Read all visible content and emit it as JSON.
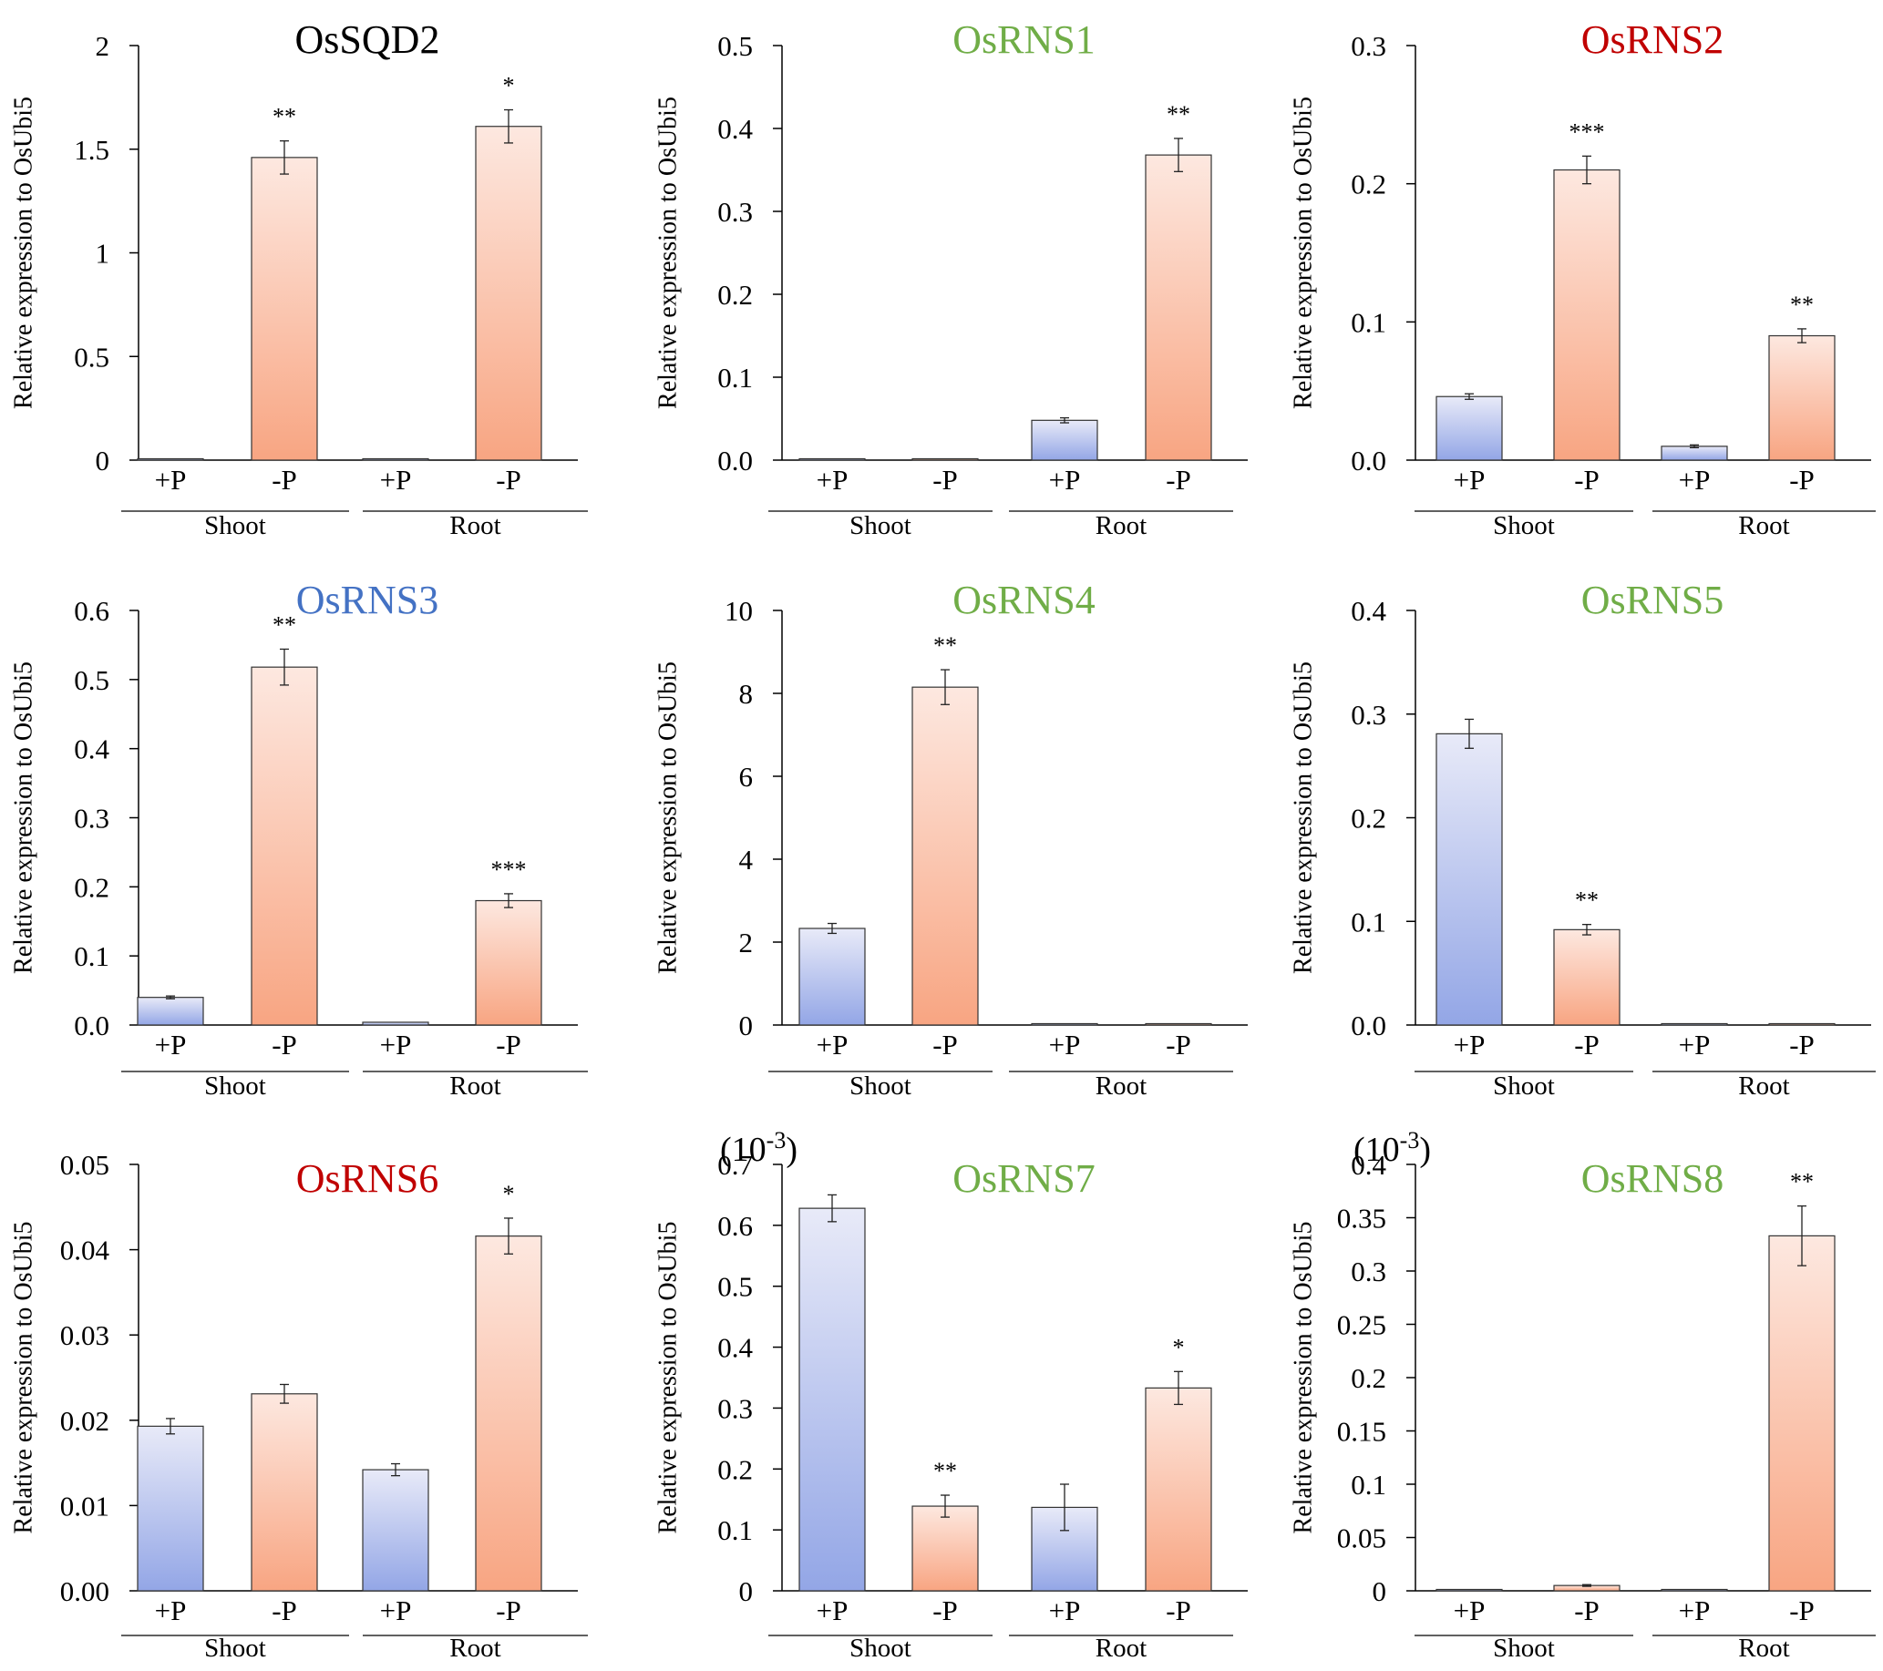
{
  "y_axis_label": "Relative expression to OsUbi5",
  "categories": [
    "+P",
    "-P",
    "+P",
    "-P"
  ],
  "groups": [
    "Shoot",
    "Root"
  ],
  "colors": {
    "plusP_top": "#e8eaf8",
    "plusP_bottom": "#93a6e6",
    "minusP_top": "#fde8e0",
    "minusP_bottom": "#f8a582",
    "axis": "#000000"
  },
  "chart_data": [
    {
      "type": "bar",
      "title": "OsSQD2",
      "title_color": "#000000",
      "exponent": "",
      "ylim": [
        0,
        2
      ],
      "ticks": [
        "0",
        "0.5",
        "1",
        "1.5",
        "2"
      ],
      "tick_values": [
        0,
        0.5,
        1,
        1.5,
        2
      ],
      "categories": [
        "+P",
        "-P",
        "+P",
        "-P"
      ],
      "values": [
        0.001,
        1.46,
        0.001,
        1.61
      ],
      "errors": [
        0,
        0.08,
        0,
        0.08
      ],
      "significance": [
        "",
        "**",
        "",
        "*"
      ]
    },
    {
      "type": "bar",
      "title": "OsRNS1",
      "title_color": "#70ad47",
      "exponent": "",
      "ylim": [
        0,
        0.5
      ],
      "ticks": [
        "0.0",
        "0.1",
        "0.2",
        "0.3",
        "0.4",
        "0.5"
      ],
      "tick_values": [
        0,
        0.1,
        0.2,
        0.3,
        0.4,
        0.5
      ],
      "categories": [
        "+P",
        "-P",
        "+P",
        "-P"
      ],
      "values": [
        0.001,
        0.001,
        0.048,
        0.368
      ],
      "errors": [
        0,
        0,
        0.003,
        0.02
      ],
      "significance": [
        "",
        "",
        "",
        "**"
      ]
    },
    {
      "type": "bar",
      "title": "OsRNS2",
      "title_color": "#c00000",
      "exponent": "",
      "ylim": [
        0,
        0.3
      ],
      "ticks": [
        "0.0",
        "0.1",
        "0.2",
        "0.3"
      ],
      "tick_values": [
        0,
        0.1,
        0.2,
        0.3
      ],
      "categories": [
        "+P",
        "-P",
        "+P",
        "-P"
      ],
      "values": [
        0.046,
        0.21,
        0.01,
        0.09
      ],
      "errors": [
        0.002,
        0.01,
        0.001,
        0.005
      ],
      "significance": [
        "",
        "***",
        "",
        "**"
      ]
    },
    {
      "type": "bar",
      "title": "OsRNS3",
      "title_color": "#4472c4",
      "exponent": "",
      "ylim": [
        0,
        0.6
      ],
      "ticks": [
        "0.0",
        "0.1",
        "0.2",
        "0.3",
        "0.4",
        "0.5",
        "0.6"
      ],
      "tick_values": [
        0,
        0.1,
        0.2,
        0.3,
        0.4,
        0.5,
        0.6
      ],
      "categories": [
        "+P",
        "-P",
        "+P",
        "-P"
      ],
      "values": [
        0.04,
        0.518,
        0.004,
        0.18
      ],
      "errors": [
        0.002,
        0.026,
        0,
        0.01
      ],
      "significance": [
        "",
        "**",
        "",
        "***"
      ]
    },
    {
      "type": "bar",
      "title": "OsRNS4",
      "title_color": "#70ad47",
      "exponent": "",
      "ylim": [
        0,
        10
      ],
      "ticks": [
        "0",
        "2",
        "4",
        "6",
        "8",
        "10"
      ],
      "tick_values": [
        0,
        2,
        4,
        6,
        8,
        10
      ],
      "categories": [
        "+P",
        "-P",
        "+P",
        "-P"
      ],
      "values": [
        2.33,
        8.15,
        0.02,
        0.02
      ],
      "errors": [
        0.12,
        0.42,
        0,
        0
      ],
      "significance": [
        "",
        "**",
        "",
        ""
      ]
    },
    {
      "type": "bar",
      "title": "OsRNS5",
      "title_color": "#70ad47",
      "exponent": "",
      "ylim": [
        0,
        0.4
      ],
      "ticks": [
        "0.0",
        "0.1",
        "0.2",
        "0.3",
        "0.4"
      ],
      "tick_values": [
        0,
        0.1,
        0.2,
        0.3,
        0.4
      ],
      "categories": [
        "+P",
        "-P",
        "+P",
        "-P"
      ],
      "values": [
        0.281,
        0.092,
        0.001,
        0.001
      ],
      "errors": [
        0.014,
        0.005,
        0,
        0
      ],
      "significance": [
        "",
        "**",
        "",
        ""
      ]
    },
    {
      "type": "bar",
      "title": "OsRNS6",
      "title_color": "#c00000",
      "exponent": "",
      "ylim": [
        0,
        0.05
      ],
      "ticks": [
        "0.00",
        "0.01",
        "0.02",
        "0.03",
        "0.04",
        "0.05"
      ],
      "tick_values": [
        0,
        0.01,
        0.02,
        0.03,
        0.04,
        0.05
      ],
      "categories": [
        "+P",
        "-P",
        "+P",
        "-P"
      ],
      "values": [
        0.0193,
        0.0231,
        0.0142,
        0.0416
      ],
      "errors": [
        0.0009,
        0.0011,
        0.0007,
        0.0021
      ],
      "significance": [
        "",
        "",
        "",
        "*"
      ]
    },
    {
      "type": "bar",
      "title": "OsRNS7",
      "title_color": "#70ad47",
      "exponent": "-3",
      "ylim": [
        0,
        0.7
      ],
      "ticks": [
        "0",
        "0.1",
        "0.2",
        "0.3",
        "0.4",
        "0.5",
        "0.6",
        "0.7"
      ],
      "tick_values": [
        0,
        0.1,
        0.2,
        0.3,
        0.4,
        0.5,
        0.6,
        0.7
      ],
      "categories": [
        "+P",
        "-P",
        "+P",
        "-P"
      ],
      "values": [
        0.628,
        0.139,
        0.137,
        0.333
      ],
      "errors": [
        0.022,
        0.018,
        0.038,
        0.027
      ],
      "significance": [
        "",
        "**",
        "",
        "*"
      ]
    },
    {
      "type": "bar",
      "title": "OsRNS8",
      "title_color": "#70ad47",
      "exponent": "-3",
      "ylim": [
        0,
        0.4
      ],
      "ticks": [
        "0",
        "0.05",
        "0.1",
        "0.15",
        "0.2",
        "0.25",
        "0.3",
        "0.35",
        "0.4"
      ],
      "tick_values": [
        0,
        0.05,
        0.1,
        0.15,
        0.2,
        0.25,
        0.3,
        0.35,
        0.4
      ],
      "categories": [
        "+P",
        "-P",
        "+P",
        "-P"
      ],
      "values": [
        0.0005,
        0.005,
        0.0005,
        0.333
      ],
      "errors": [
        0,
        0.0008,
        0,
        0.028
      ],
      "significance": [
        "",
        "",
        "",
        "**"
      ]
    }
  ]
}
